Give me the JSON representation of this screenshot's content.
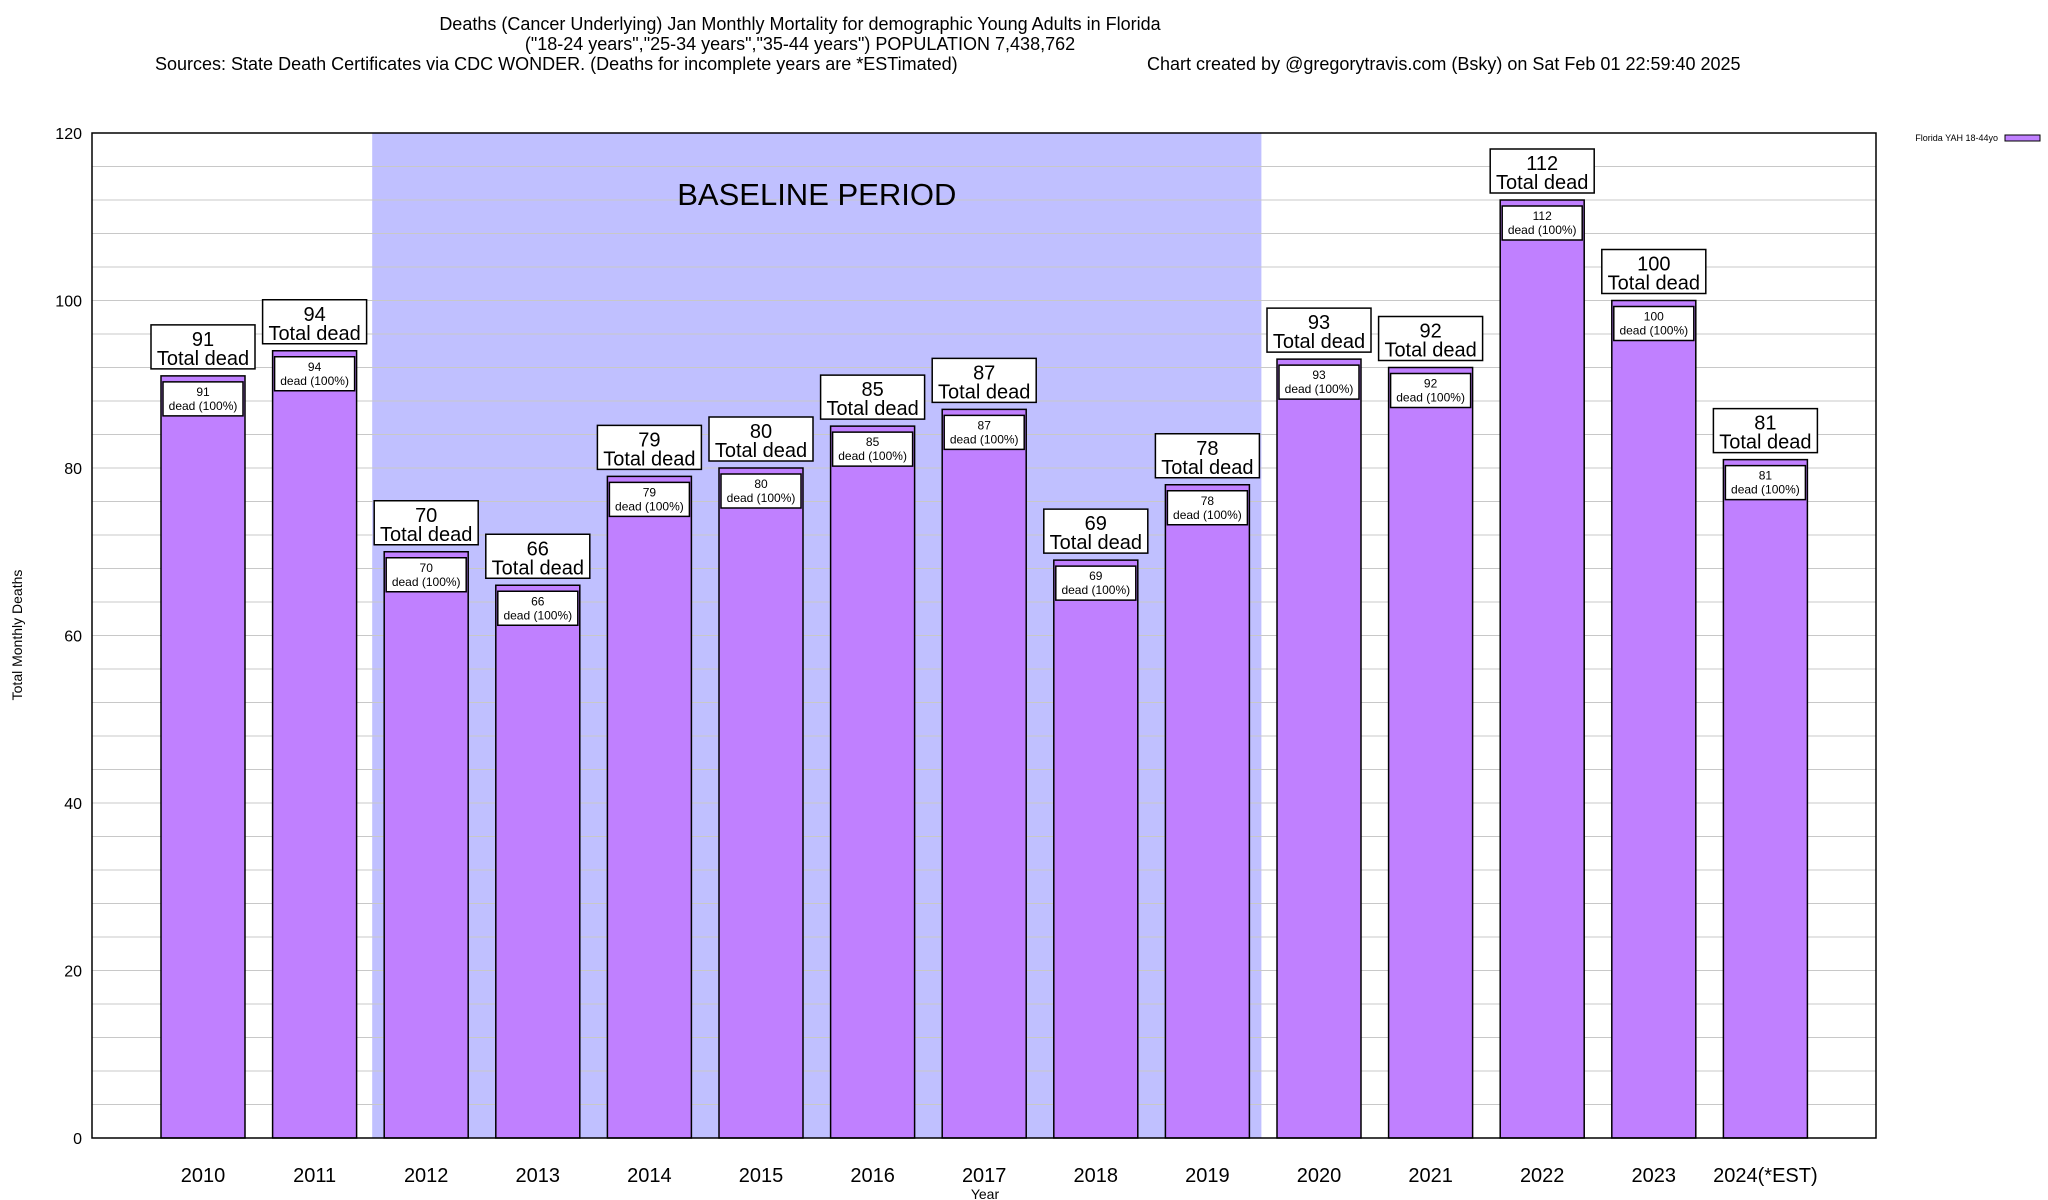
{
  "chart_data": {
    "type": "bar",
    "title": "Deaths (Cancer Underlying) Jan Monthly Mortality for demographic Young Adults in Florida",
    "subtitle": "(\"18-24 years\",\"25-34 years\",\"35-44 years\") POPULATION 7,438,762",
    "sources": "Sources: State Death Certificates via CDC WONDER. (Deaths for incomplete years are *ESTimated)",
    "credit": "Chart created by @gregorytravis.com (Bsky) on Sat Feb 01 22:59:40 2025",
    "xlabel": "Year",
    "ylabel": "Total Monthly Deaths",
    "ylim": [
      0,
      120
    ],
    "yticks": [
      0,
      20,
      40,
      60,
      80,
      100,
      120
    ],
    "minor_grid_step": 4,
    "categories": [
      "2010",
      "2011",
      "2012",
      "2013",
      "2014",
      "2015",
      "2016",
      "2017",
      "2018",
      "2019",
      "2020",
      "2021",
      "2022",
      "2023",
      "2024(*EST)"
    ],
    "series": [
      {
        "name": "Florida YAH 18-44yo",
        "color": "#c080ff",
        "values": [
          91,
          94,
          70,
          66,
          79,
          80,
          85,
          87,
          69,
          78,
          93,
          92,
          112,
          100,
          81
        ]
      }
    ],
    "top_label_suffix": "Total dead",
    "inner_label_suffix": "dead (100%)",
    "annotation": {
      "text": "BASELINE PERIOD",
      "from": "2012",
      "to": "2019",
      "color": "#c0c0ff"
    },
    "legend_position": "top-right"
  }
}
